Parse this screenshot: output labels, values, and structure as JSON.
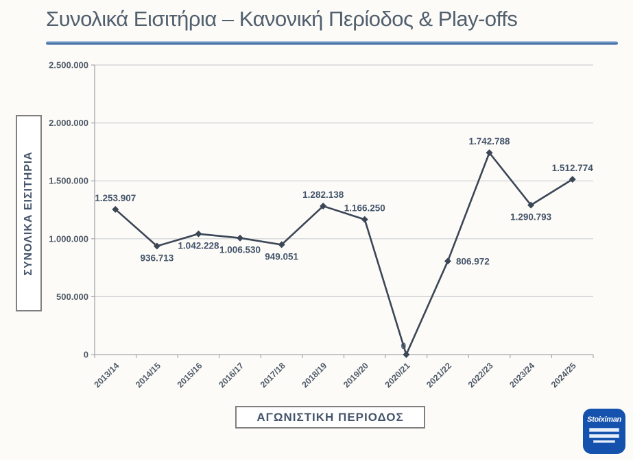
{
  "page": {
    "title": "Συνολικά Εισιτήρια – Κανονική Περίοδος & Play-offs"
  },
  "chart_data": {
    "type": "line",
    "title": "Συνολικά Εισιτήρια – Κανονική Περίοδος & Play-offs",
    "xlabel": "ΑΓΩΝΙΣΤΙΚΗ ΠΕΡΙΟΔΟΣ",
    "ylabel": "ΣΥΝΟΛΙΚΑ ΕΙΣΙΤΗΡΙΑ",
    "categories": [
      "2013/14",
      "2014/15",
      "2015/16",
      "2016/17",
      "2017/18",
      "2018/19",
      "2019/20",
      "2020/21",
      "2021/22",
      "2022/23",
      "2023/24",
      "2024/25"
    ],
    "values": [
      1253907,
      936713,
      1042228,
      1006530,
      949051,
      1282138,
      1166250,
      0,
      806972,
      1742788,
      1290793,
      1512774
    ],
    "data_labels": [
      "1.253.907",
      "936.713",
      "1.042.228",
      "1.006.530",
      "949.051",
      "1.282.138",
      "1.166.250",
      "0",
      "806.972",
      "1.742.788",
      "1.290.793",
      "1.512.774"
    ],
    "label_placement": [
      "above",
      "below",
      "below",
      "below",
      "below",
      "above",
      "above",
      "above-tight",
      "right",
      "above",
      "below",
      "above"
    ],
    "ylim": [
      0,
      2500000
    ],
    "ytick_step": 500000,
    "ytick_labels": [
      "0",
      "500.000",
      "1.000.000",
      "1.500.000",
      "2.000.000",
      "2.500.000"
    ],
    "grid": true,
    "legend": "none",
    "marker": "diamond",
    "series_color": "#3b4656",
    "data_label_color": "#44546a",
    "tick_label_color": "#4f5a68",
    "gridline_color": "#cdd0d3",
    "axis_color": "#a3a7ab"
  },
  "footer": {
    "logo_text": "Stoiximan"
  }
}
